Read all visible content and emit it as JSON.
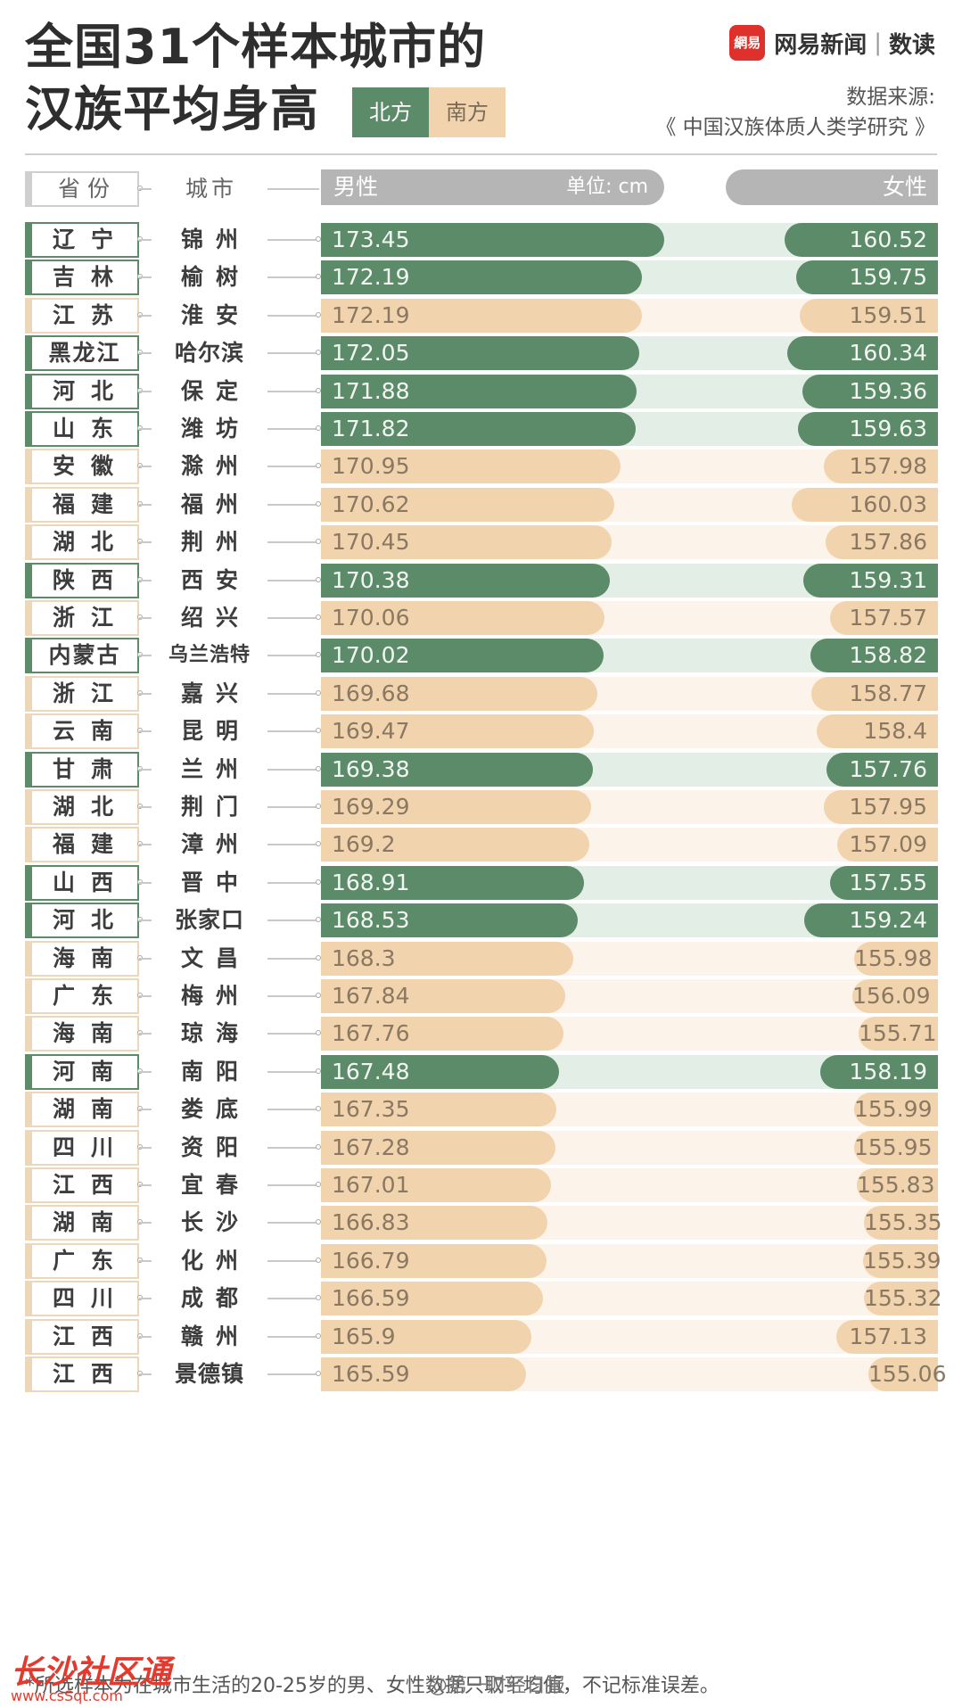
{
  "header": {
    "title_line1": "全国31个样本城市的",
    "title_line2": "汉族平均身高",
    "legend_north": "北方",
    "legend_south": "南方",
    "brand_logo": "網易",
    "brand_name": "网易新闻",
    "brand_sep": "|",
    "brand_sub": "数读",
    "source_label": "数据来源:",
    "source_value": "《 中国汉族体质人类学研究 》"
  },
  "columns": {
    "province": "省份",
    "city": "城市",
    "male": "男性",
    "unit": "单位: cm",
    "female": "女性"
  },
  "colors": {
    "north": "#5c8b69",
    "south": "#f1d4ad",
    "north_track": "#e3eee6",
    "south_track": "#fcf3ea"
  },
  "chart_data": {
    "type": "bar",
    "title": "全国31个样本城市的汉族平均身高",
    "unit": "cm",
    "series": [
      {
        "name": "男性"
      },
      {
        "name": "女性"
      }
    ],
    "rows": [
      {
        "province": "辽宁",
        "city": "锦州",
        "region": "north",
        "male": 173.45,
        "female": 160.52,
        "male_label": "173.45",
        "female_label": "160.52"
      },
      {
        "province": "吉林",
        "city": "榆树",
        "region": "north",
        "male": 172.19,
        "female": 159.75,
        "male_label": "172.19",
        "female_label": "159.75"
      },
      {
        "province": "江苏",
        "city": "淮安",
        "region": "south",
        "male": 172.19,
        "female": 159.51,
        "male_label": "172.19",
        "female_label": "159.51"
      },
      {
        "province": "黑龙江",
        "city": "哈尔滨",
        "region": "north",
        "male": 172.05,
        "female": 160.34,
        "male_label": "172.05",
        "female_label": "160.34"
      },
      {
        "province": "河北",
        "city": "保定",
        "region": "north",
        "male": 171.88,
        "female": 159.36,
        "male_label": "171.88",
        "female_label": "159.36"
      },
      {
        "province": "山东",
        "city": "潍坊",
        "region": "north",
        "male": 171.82,
        "female": 159.63,
        "male_label": "171.82",
        "female_label": "159.63"
      },
      {
        "province": "安徽",
        "city": "滁州",
        "region": "south",
        "male": 170.95,
        "female": 157.98,
        "male_label": "170.95",
        "female_label": "157.98"
      },
      {
        "province": "福建",
        "city": "福州",
        "region": "south",
        "male": 170.62,
        "female": 160.03,
        "male_label": "170.62",
        "female_label": "160.03"
      },
      {
        "province": "湖北",
        "city": "荆州",
        "region": "south",
        "male": 170.45,
        "female": 157.86,
        "male_label": "170.45",
        "female_label": "157.86"
      },
      {
        "province": "陕西",
        "city": "西安",
        "region": "north",
        "male": 170.38,
        "female": 159.31,
        "male_label": "170.38",
        "female_label": "159.31"
      },
      {
        "province": "浙江",
        "city": "绍兴",
        "region": "south",
        "male": 170.06,
        "female": 157.57,
        "male_label": "170.06",
        "female_label": "157.57"
      },
      {
        "province": "内蒙古",
        "city": "乌兰浩特",
        "region": "north",
        "male": 170.02,
        "female": 158.82,
        "male_label": "170.02",
        "female_label": "158.82"
      },
      {
        "province": "浙江",
        "city": "嘉兴",
        "region": "south",
        "male": 169.68,
        "female": 158.77,
        "male_label": "169.68",
        "female_label": "158.77"
      },
      {
        "province": "云南",
        "city": "昆明",
        "region": "south",
        "male": 169.47,
        "female": 158.4,
        "male_label": "169.47",
        "female_label": "158.4"
      },
      {
        "province": "甘肃",
        "city": "兰州",
        "region": "north",
        "male": 169.38,
        "female": 157.76,
        "male_label": "169.38",
        "female_label": "157.76"
      },
      {
        "province": "湖北",
        "city": "荆门",
        "region": "south",
        "male": 169.29,
        "female": 157.95,
        "male_label": "169.29",
        "female_label": "157.95"
      },
      {
        "province": "福建",
        "city": "漳州",
        "region": "south",
        "male": 169.2,
        "female": 157.09,
        "male_label": "169.2",
        "female_label": "157.09"
      },
      {
        "province": "山西",
        "city": "晋中",
        "region": "north",
        "male": 168.91,
        "female": 157.55,
        "male_label": "168.91",
        "female_label": "157.55"
      },
      {
        "province": "河北",
        "city": "张家口",
        "region": "north",
        "male": 168.53,
        "female": 159.24,
        "male_label": "168.53",
        "female_label": "159.24"
      },
      {
        "province": "海南",
        "city": "文昌",
        "region": "south",
        "male": 168.3,
        "female": 155.98,
        "male_label": "168.3",
        "female_label": "155.98"
      },
      {
        "province": "广东",
        "city": "梅州",
        "region": "south",
        "male": 167.84,
        "female": 156.09,
        "male_label": "167.84",
        "female_label": "156.09"
      },
      {
        "province": "海南",
        "city": "琼海",
        "region": "south",
        "male": 167.76,
        "female": 155.71,
        "male_label": "167.76",
        "female_label": "155.71"
      },
      {
        "province": "河南",
        "city": "南阳",
        "region": "north",
        "male": 167.48,
        "female": 158.19,
        "male_label": "167.48",
        "female_label": "158.19"
      },
      {
        "province": "湖南",
        "city": "娄底",
        "region": "south",
        "male": 167.35,
        "female": 155.99,
        "male_label": "167.35",
        "female_label": "155.99"
      },
      {
        "province": "四川",
        "city": "资阳",
        "region": "south",
        "male": 167.28,
        "female": 155.95,
        "male_label": "167.28",
        "female_label": "155.95"
      },
      {
        "province": "江西",
        "city": "宜春",
        "region": "south",
        "male": 167.01,
        "female": 155.83,
        "male_label": "167.01",
        "female_label": "155.83"
      },
      {
        "province": "湖南",
        "city": "长沙",
        "region": "south",
        "male": 166.83,
        "female": 155.35,
        "male_label": "166.83",
        "female_label": "155.35"
      },
      {
        "province": "广东",
        "city": "化州",
        "region": "south",
        "male": 166.79,
        "female": 155.39,
        "male_label": "166.79",
        "female_label": "155.39"
      },
      {
        "province": "四川",
        "city": "成都",
        "region": "south",
        "male": 166.59,
        "female": 155.32,
        "male_label": "166.59",
        "female_label": "155.32"
      },
      {
        "province": "江西",
        "city": "赣州",
        "region": "south",
        "male": 165.9,
        "female": 157.13,
        "male_label": "165.9",
        "female_label": "157.13"
      },
      {
        "province": "江西",
        "city": "景德镇",
        "region": "south",
        "male": 165.59,
        "female": 155.06,
        "male_label": "165.59",
        "female_label": "155.06"
      }
    ]
  },
  "footer": {
    "note": "*所选样本为在城市生活的20-25岁的男、女性数据只取平均值，不记标准误差。",
    "watermark": "长沙社区通",
    "watermark_sub": "www.csSqt.com",
    "weibo": "@第一财经日报"
  }
}
